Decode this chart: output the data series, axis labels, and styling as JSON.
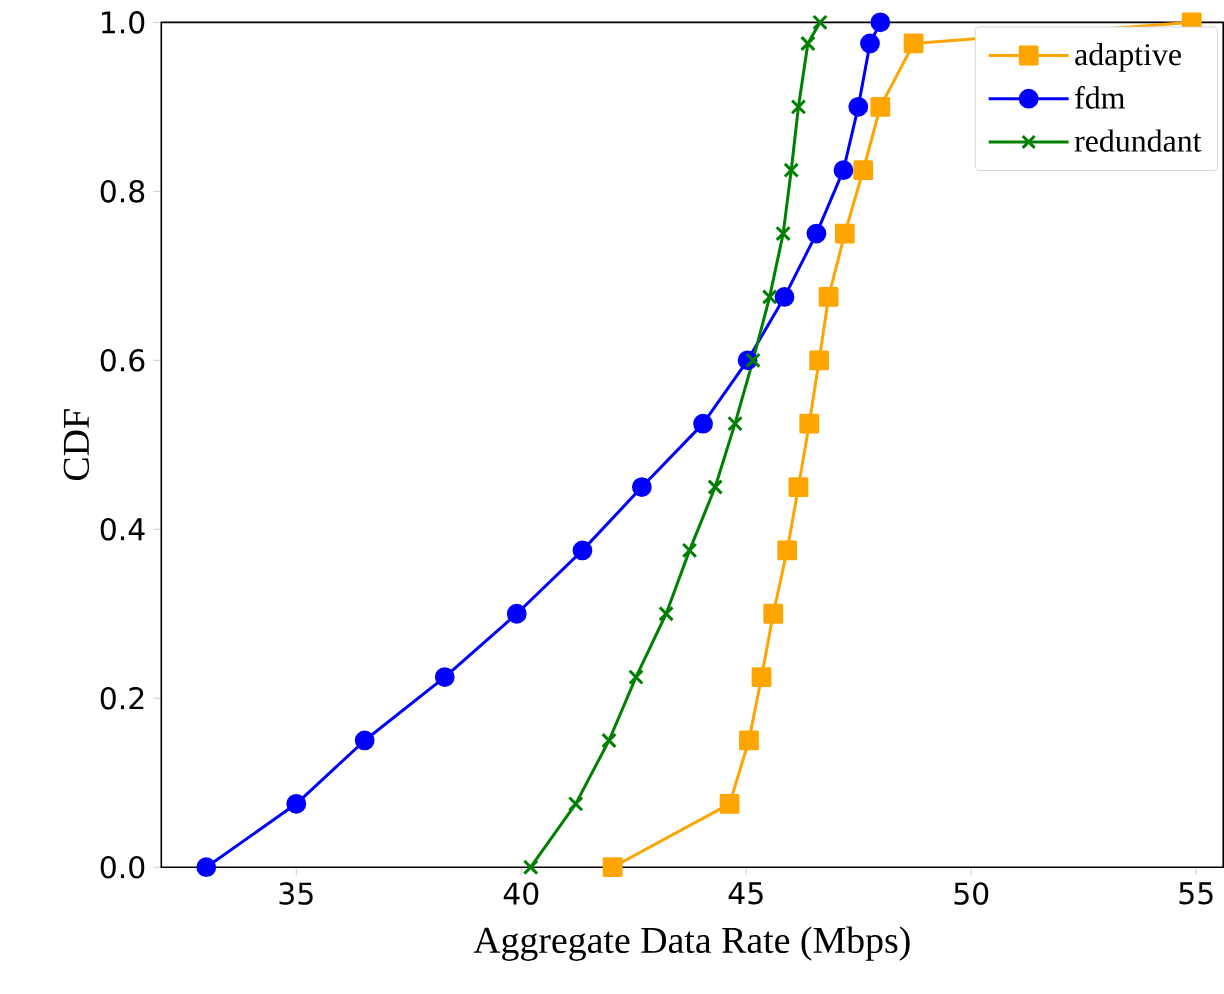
{
  "chart_data": {
    "type": "line",
    "xlabel": "Aggregate Data Rate (Mbps)",
    "ylabel": "CDF",
    "xlim": [
      32,
      55.6
    ],
    "ylim": [
      0,
      1
    ],
    "xticks": [
      35,
      40,
      45,
      50,
      55
    ],
    "yticks": [
      {
        "value": 0,
        "label": "0.0"
      },
      {
        "value": 0.2,
        "label": "0.2"
      },
      {
        "value": 0.4,
        "label": "0.4"
      },
      {
        "value": 0.6,
        "label": "0.6"
      },
      {
        "value": 0.8,
        "label": "0.8"
      },
      {
        "value": 1,
        "label": "1.0"
      }
    ],
    "legend": "top right",
    "grid": false,
    "series": [
      {
        "name": "adaptive",
        "color": "#ffa500",
        "marker": "square",
        "x": [
          42.03,
          44.63,
          45.06,
          45.34,
          45.6,
          45.91,
          46.16,
          46.4,
          46.62,
          46.83,
          47.19,
          47.6,
          47.98,
          48.72,
          54.9
        ],
        "values": [
          0,
          0.075,
          0.15,
          0.225,
          0.3,
          0.375,
          0.45,
          0.525,
          0.6,
          0.675,
          0.75,
          0.825,
          0.9,
          0.975,
          1.0
        ]
      },
      {
        "name": "fdm",
        "color": "#0000ff",
        "marker": "circle",
        "x": [
          33.0,
          35.0,
          36.52,
          38.3,
          39.9,
          41.36,
          42.68,
          44.04,
          45.03,
          45.85,
          46.56,
          47.16,
          47.49,
          47.75,
          47.98
        ],
        "values": [
          0,
          0.075,
          0.15,
          0.225,
          0.3,
          0.375,
          0.45,
          0.525,
          0.6,
          0.675,
          0.75,
          0.825,
          0.9,
          0.975,
          1.0
        ]
      },
      {
        "name": "redundant",
        "color": "#008000",
        "marker": "cross",
        "x": [
          40.21,
          41.21,
          41.95,
          42.55,
          43.22,
          43.74,
          44.31,
          44.75,
          45.15,
          45.52,
          45.82,
          46.0,
          46.16,
          46.37,
          46.64
        ],
        "values": [
          0,
          0.075,
          0.15,
          0.225,
          0.3,
          0.375,
          0.45,
          0.525,
          0.6,
          0.675,
          0.75,
          0.825,
          0.9,
          0.975,
          1.0
        ]
      }
    ]
  }
}
